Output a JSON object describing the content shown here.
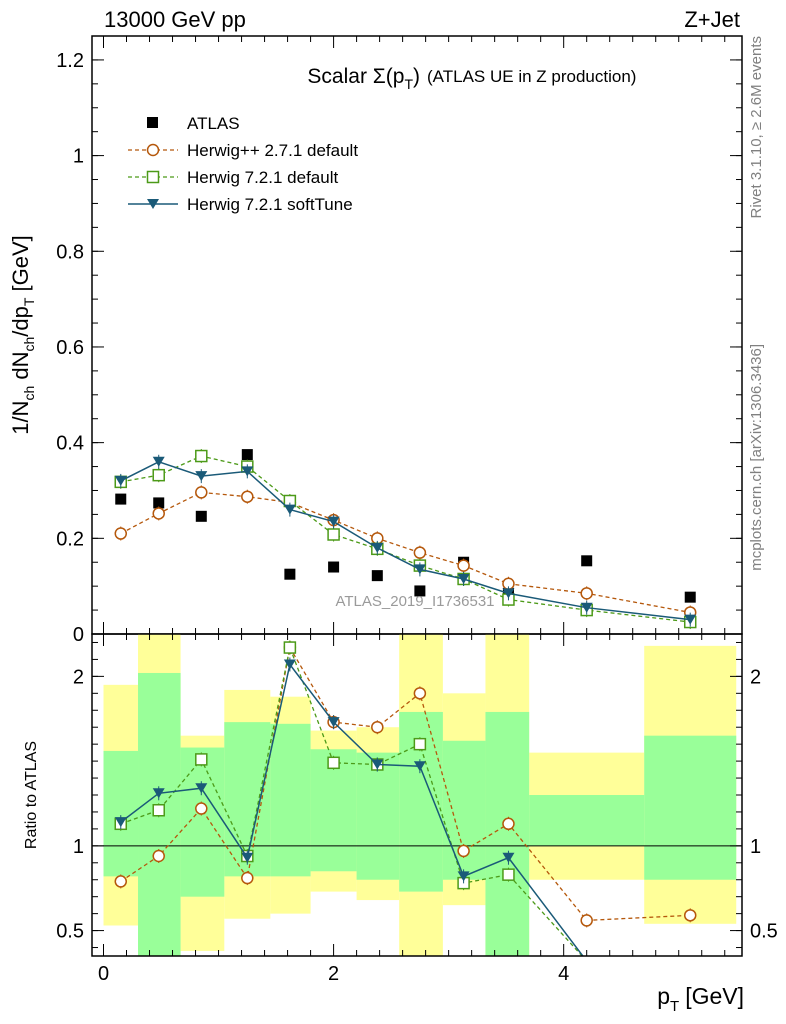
{
  "header": {
    "left": "13000 GeV pp",
    "right": "Z+Jet"
  },
  "side_text": {
    "rivet": "Rivet 3.1.10, ≥ 2.6M events",
    "mcplots": "mcplots.cern.ch [arXiv:1306.3436]"
  },
  "watermark": "ATLAS_2019_I1736531",
  "chart_data": [
    {
      "type": "scatter",
      "title_main": "Scalar Σ(p",
      "title_sub": "T",
      "title_close": ")",
      "title_tail": "(ATLAS UE in Z production)",
      "ylabel": "1/N_ch dN_ch/dp_T [GeV]",
      "ylim": [
        0,
        1.25
      ],
      "yticks": [
        0,
        0.2,
        0.4,
        0.6,
        0.8,
        1,
        1.2
      ],
      "ytick_labels": [
        "0",
        "0.2",
        "0.4",
        "0.6",
        "0.8",
        "1",
        "1.2"
      ],
      "xlim": [
        -0.1,
        5.55
      ],
      "legend_placement": "top-left",
      "series": [
        {
          "name": "ATLAS",
          "color": "#000000",
          "marker": "square-filled",
          "line": "none",
          "x": [
            0.15,
            0.48,
            0.85,
            1.25,
            1.62,
            2.0,
            2.38,
            2.75,
            3.13,
            3.52,
            4.2,
            5.1
          ],
          "y": [
            0.282,
            0.274,
            0.246,
            0.375,
            0.125,
            0.14,
            0.122,
            0.09,
            0.15,
            0.085,
            0.153,
            0.077
          ]
        },
        {
          "name": "Herwig++ 2.7.1 default",
          "color": "#b5580c",
          "marker": "circle-open",
          "line": "dashed",
          "x": [
            0.15,
            0.48,
            0.85,
            1.25,
            1.62,
            2.0,
            2.38,
            2.75,
            3.13,
            3.52,
            4.2,
            5.1
          ],
          "y": [
            0.21,
            0.252,
            0.296,
            0.287,
            0.275,
            0.238,
            0.2,
            0.17,
            0.143,
            0.105,
            0.085,
            0.045
          ]
        },
        {
          "name": "Herwig 7.2.1 default",
          "color": "#4c9a18",
          "marker": "square-open",
          "line": "dashed",
          "x": [
            0.15,
            0.48,
            0.85,
            1.25,
            1.62,
            2.0,
            2.38,
            2.75,
            3.13,
            3.52,
            4.2,
            5.1
          ],
          "y": [
            0.318,
            0.332,
            0.372,
            0.35,
            0.278,
            0.208,
            0.178,
            0.143,
            0.115,
            0.072,
            0.05,
            0.025
          ]
        },
        {
          "name": "Herwig 7.2.1 softTune",
          "color": "#1a5a78",
          "marker": "triangle-down-filled",
          "line": "solid",
          "x": [
            0.15,
            0.48,
            0.85,
            1.25,
            1.62,
            2.0,
            2.38,
            2.75,
            3.13,
            3.52,
            4.2,
            5.1
          ],
          "y": [
            0.32,
            0.36,
            0.33,
            0.34,
            0.26,
            0.235,
            0.18,
            0.135,
            0.115,
            0.085,
            0.055,
            0.03
          ]
        }
      ]
    },
    {
      "type": "scatter",
      "ylabel": "Ratio to ATLAS",
      "ylim": [
        0.35,
        2.25
      ],
      "yticks": [
        0.5,
        1,
        2
      ],
      "ytick_labels": [
        "0.5",
        "1",
        "2"
      ],
      "xlim": [
        -0.1,
        5.55
      ],
      "xlabel_main": "p",
      "xlabel_sub": "T",
      "xlabel_unit": "[GeV]",
      "xticks": [
        0,
        2,
        4
      ],
      "xtick_labels": [
        "0",
        "2",
        "4"
      ],
      "bands": {
        "edges": [
          0.0,
          0.3,
          0.67,
          1.05,
          1.45,
          1.8,
          2.2,
          2.57,
          2.95,
          3.32,
          3.7,
          4.7,
          5.5
        ],
        "yellow_low": [
          0.53,
          0.35,
          0.38,
          0.57,
          0.6,
          0.73,
          0.68,
          0.35,
          0.65,
          0.35,
          0.8,
          0.54
        ],
        "yellow_high": [
          1.95,
          2.25,
          1.65,
          1.92,
          1.88,
          1.68,
          1.7,
          2.25,
          1.9,
          2.25,
          1.55,
          2.18
        ],
        "green_low": [
          0.82,
          0.35,
          0.7,
          0.82,
          0.82,
          0.85,
          0.8,
          0.73,
          0.8,
          0.35,
          1.0,
          0.8
        ],
        "green_high": [
          1.56,
          2.02,
          1.58,
          1.73,
          1.72,
          1.57,
          1.55,
          1.79,
          1.62,
          1.79,
          1.3,
          1.65
        ]
      },
      "series": [
        {
          "name": "Herwig++ 2.7.1 default",
          "color": "#b5580c",
          "marker": "circle-open",
          "line": "dashed",
          "x": [
            0.15,
            0.48,
            0.85,
            1.25,
            1.62,
            2.0,
            2.38,
            2.75,
            3.13,
            3.52,
            4.2,
            5.1
          ],
          "y": [
            0.79,
            0.94,
            1.22,
            0.81,
            2.17,
            1.73,
            1.7,
            1.9,
            0.97,
            1.13,
            0.56,
            0.59
          ]
        },
        {
          "name": "Herwig 7.2.1 default",
          "color": "#4c9a18",
          "marker": "square-open",
          "line": "dashed",
          "x": [
            0.15,
            0.48,
            0.85,
            1.25,
            1.62,
            2.0,
            2.38,
            2.75,
            3.13,
            3.52,
            4.2
          ],
          "y": [
            1.13,
            1.21,
            1.51,
            0.94,
            2.17,
            1.49,
            1.48,
            1.6,
            0.78,
            0.83,
            0.32
          ]
        },
        {
          "name": "Herwig 7.2.1 softTune",
          "color": "#1a5a78",
          "marker": "triangle-down-filled",
          "line": "solid",
          "x": [
            0.15,
            0.48,
            0.85,
            1.25,
            1.62,
            2.0,
            2.38,
            2.75,
            3.13,
            3.52,
            4.2
          ],
          "y": [
            1.14,
            1.31,
            1.34,
            0.93,
            2.07,
            1.73,
            1.48,
            1.47,
            0.82,
            0.93,
            0.32
          ]
        }
      ]
    }
  ]
}
